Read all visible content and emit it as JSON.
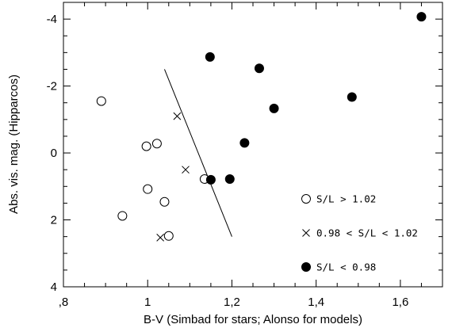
{
  "chart_data": {
    "type": "scatter",
    "xlabel": "B-V (Simbad for stars; Alonso for models)",
    "ylabel": "Abs. vis. mag. (Hipparcos)",
    "xlim": [
      0.8,
      1.7
    ],
    "ylim": [
      4,
      -4.5
    ],
    "y_inverted": true,
    "x_ticks": [
      {
        "value": 0.8,
        "label": ",8"
      },
      {
        "value": 1.0,
        "label": "1"
      },
      {
        "value": 1.2,
        "label": "1,2"
      },
      {
        "value": 1.4,
        "label": "1,4"
      },
      {
        "value": 1.6,
        "label": "1,6"
      }
    ],
    "y_ticks": [
      {
        "value": -4,
        "label": "-4"
      },
      {
        "value": -2,
        "label": "-2"
      },
      {
        "value": 0,
        "label": "0"
      },
      {
        "value": 2,
        "label": "2"
      },
      {
        "value": 4,
        "label": "4"
      }
    ],
    "grid": false,
    "series": [
      {
        "marker": "open-circle",
        "points": [
          {
            "x": 0.89,
            "y": -1.55
          },
          {
            "x": 0.997,
            "y": -0.2
          },
          {
            "x": 1.022,
            "y": -0.28
          },
          {
            "x": 1.0,
            "y": 1.08
          },
          {
            "x": 1.04,
            "y": 1.46
          },
          {
            "x": 0.94,
            "y": 1.88
          },
          {
            "x": 1.05,
            "y": 2.48
          },
          {
            "x": 1.135,
            "y": 0.78
          }
        ]
      },
      {
        "marker": "cross",
        "points": [
          {
            "x": 1.07,
            "y": -1.1
          },
          {
            "x": 1.09,
            "y": 0.5
          },
          {
            "x": 1.03,
            "y": 2.53
          }
        ]
      },
      {
        "marker": "filled-circle",
        "points": [
          {
            "x": 1.148,
            "y": -2.87
          },
          {
            "x": 1.265,
            "y": -2.53
          },
          {
            "x": 1.3,
            "y": -1.33
          },
          {
            "x": 1.485,
            "y": -1.67
          },
          {
            "x": 1.65,
            "y": -4.07
          },
          {
            "x": 1.23,
            "y": -0.3
          },
          {
            "x": 1.15,
            "y": 0.8
          },
          {
            "x": 1.195,
            "y": 0.78
          }
        ]
      }
    ],
    "line": {
      "x": [
        1.04,
        1.2
      ],
      "y": [
        -2.5,
        2.5
      ]
    },
    "legend": {
      "placement": "bottom-right",
      "items": [
        {
          "marker": "open-circle",
          "label": "S/L > 1.02"
        },
        {
          "marker": "cross",
          "label": "0.98 < S/L < 1.02"
        },
        {
          "marker": "filled-circle",
          "label": "S/L < 0.98"
        }
      ]
    }
  }
}
